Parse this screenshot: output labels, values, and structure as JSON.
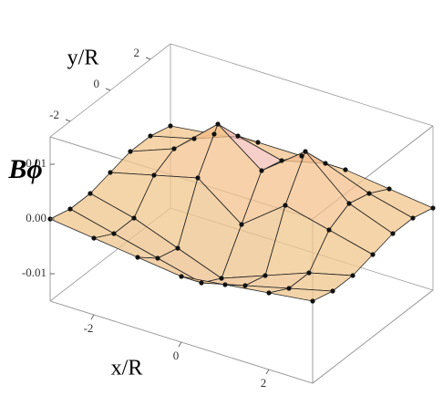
{
  "chart_data": {
    "type": "surface3d",
    "x_label": "x/R",
    "y_label": "y/R",
    "z_label": "Bϕ",
    "x": [
      -3,
      -2,
      -1,
      0,
      1,
      2,
      3
    ],
    "y": [
      -3,
      -2,
      -1,
      0,
      1,
      2,
      3
    ],
    "z": [
      [
        0,
        -0.001,
        -0.002,
        -0.003,
        -0.002,
        -0.001,
        0
      ],
      [
        -0.001,
        -0.003,
        -0.005,
        -0.007,
        -0.005,
        -0.003,
        -0.001
      ],
      [
        -0.001,
        -0.003,
        -0.006,
        -0.009,
        -0.006,
        -0.003,
        -0.001
      ],
      [
        0,
        0.002,
        0.004,
        -0.002,
        0.004,
        0.002,
        0
      ],
      [
        0.001,
        0.004,
        0.011,
        0.005,
        0.011,
        0.004,
        0.001
      ],
      [
        0.001,
        0.003,
        0.006,
        0.004,
        0.006,
        0.003,
        0.001
      ],
      [
        0,
        0.001,
        0.002,
        0.002,
        0.002,
        0.001,
        0
      ]
    ],
    "xlim": [
      -3,
      3
    ],
    "ylim": [
      -3,
      3
    ],
    "zlim": [
      -0.015,
      0.015
    ],
    "xticks": [
      -2,
      0,
      2
    ],
    "yticks": [
      -2,
      0,
      2
    ],
    "zticks": [
      -0.01,
      {
        "value": 0,
        "label": "0.00"
      },
      0.01
    ]
  }
}
